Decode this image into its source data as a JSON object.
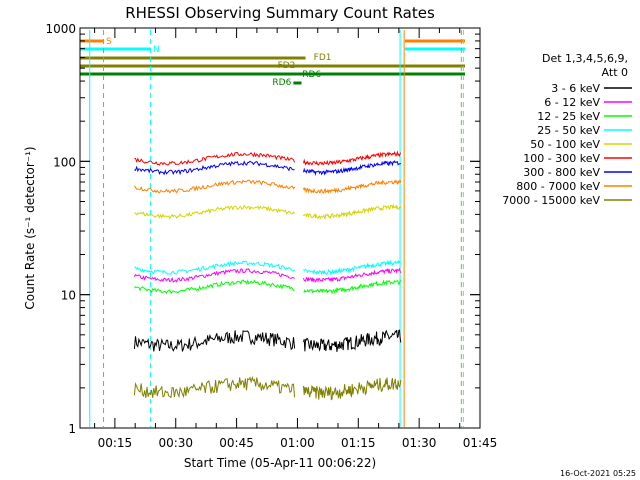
{
  "chart_data": {
    "type": "line",
    "title": "RHESSI Observing Summary Count Rates",
    "xlabel": "Start Time (05-Apr-11 00:06:22)",
    "ylabel": "Count Rate (s⁻¹ detector⁻¹)",
    "y_scale": "log",
    "ylim": [
      1,
      1000
    ],
    "xlim_minutes": [
      6.4,
      105.0
    ],
    "x_ticks": [
      {
        "label": "00:15",
        "minute": 15
      },
      {
        "label": "00:30",
        "minute": 30
      },
      {
        "label": "00:45",
        "minute": 45
      },
      {
        "label": "01:00",
        "minute": 60
      },
      {
        "label": "01:15",
        "minute": 75
      },
      {
        "label": "01:30",
        "minute": 90
      },
      {
        "label": "01:45",
        "minute": 105
      }
    ],
    "y_ticks": [
      {
        "label": "1",
        "value": 1
      },
      {
        "label": "10",
        "value": 10
      },
      {
        "label": "100",
        "value": 100
      },
      {
        "label": "1000",
        "value": 1000
      }
    ],
    "legend": {
      "header": [
        "Det 1,3,4,5,6,9,",
        "Att 0"
      ],
      "placement": "right"
    },
    "series": [
      {
        "name": "3 - 6 keV",
        "color": "#000000",
        "level": 4.5
      },
      {
        "name": "6 - 12 keV",
        "color": "#ff00ff",
        "level": 14
      },
      {
        "name": "12 - 25 keV",
        "color": "#00ff00",
        "level": 11.5
      },
      {
        "name": "25 - 50 keV",
        "color": "#00ffff",
        "level": 16
      },
      {
        "name": "50 - 100 keV",
        "color": "#d4d400",
        "level": 42
      },
      {
        "name": "100 - 300 keV",
        "color": "#ff0000",
        "level": 105
      },
      {
        "name": "300 - 800 keV",
        "color": "#0000ff",
        "level": 90
      },
      {
        "name": "800 - 7000 keV",
        "color": "#ff8000",
        "level": 65
      },
      {
        "name": "7000 - 15000 keV",
        "color": "#808000",
        "level": 2
      }
    ],
    "data_segments": [
      {
        "start_minute": 19.8,
        "end_minute": 59.3
      },
      {
        "start_minute": 61.5,
        "end_minute": 85.5
      }
    ],
    "flags": [
      {
        "label": "S",
        "color": "#ff8000"
      },
      {
        "label": "N",
        "color": "#00ffff"
      },
      {
        "label": "FD1",
        "color": "#808000"
      },
      {
        "label": "FD2",
        "color": "#808000"
      },
      {
        "label": "RD6",
        "color": "#008000"
      },
      {
        "label": "RD6",
        "color": "#008000"
      }
    ]
  },
  "footer": {
    "timestamp": "16-Oct-2021 05:25"
  }
}
